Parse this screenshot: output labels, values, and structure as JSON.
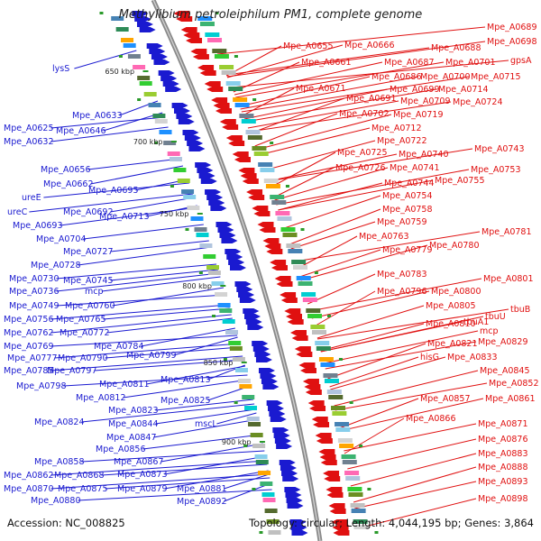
{
  "title": "Methylibium petroleiphilum PM1, complete genome",
  "accession": "Accession: NC_008825",
  "summary": "Topology: circular; Length: 4,044,195 bp; Genes: 3,864",
  "colors": {
    "left": "#1a1ad0",
    "right": "#e01010",
    "backbone": "#888888"
  },
  "kbp_marks": [
    "650 kbp",
    "700 kbp",
    "750 kbp",
    "800 kbp",
    "850 kbp",
    "900 kbp"
  ],
  "left_labels": [
    "lysS",
    "Mpe_A0633",
    "Mpe_A0625",
    "Mpe_A0646",
    "Mpe_A0632",
    "Mpe_A0656",
    "Mpe_A0662",
    "ureE",
    "Mpe_A0695",
    "ureC",
    "Mpe_A0692",
    "Mpe_A0713",
    "Mpe_A0693",
    "Mpe_A0704",
    "Mpe_A0727",
    "Mpe_A0728",
    "Mpe_A0730",
    "Mpe_A0745",
    "Mpe_A0736",
    "mcp",
    "Mpe_A0749",
    "Mpe_A0760",
    "Mpe_A0756",
    "Mpe_A0765",
    "Mpe_A0762",
    "Mpe_A0772",
    "Mpe_A0769",
    "Mpe_A0784",
    "Mpe_A0777",
    "Mpe_A0790",
    "Mpe_A0799",
    "Mpe_A0785",
    "Mpe_A0797",
    "Mpe_A0811",
    "Mpe_A0813",
    "Mpe_A0798",
    "Mpe_A0812",
    "Mpe_A0825",
    "Mpe_A0823",
    "Mpe_A0824",
    "Mpe_A0844",
    "mscL",
    "Mpe_A0847",
    "Mpe_A0856",
    "Mpe_A0858",
    "Mpe_A0867",
    "Mpe_A0862",
    "Mpe_A0868",
    "Mpe_A0873",
    "Mpe_A0870",
    "Mpe_A0875",
    "Mpe_A0879",
    "Mpe_A0881",
    "Mpe_A0880",
    "Mpe_A0892"
  ],
  "right_labels": [
    "Mpe_A0689",
    "Mpe_A0655",
    "Mpe_A0666",
    "Mpe_A0698",
    "Mpe_A0688",
    "Mpe_A0661",
    "Mpe_A0687",
    "Mpe_A0701",
    "gpsA",
    "Mpe_A0686",
    "Mpe_A0700",
    "Mpe_A0715",
    "Mpe_A0671",
    "Mpe_A0699",
    "Mpe_A0714",
    "Mpe_A0691",
    "Mpe_A0709",
    "Mpe_A0724",
    "Mpe_A0702",
    "Mpe_A0719",
    "Mpe_A0712",
    "Mpe_A0722",
    "Mpe_A0743",
    "Mpe_A0725",
    "Mpe_A0740",
    "Mpe_A0726",
    "Mpe_A0741",
    "Mpe_A0753",
    "Mpe_A0744",
    "Mpe_A0755",
    "Mpe_A0754",
    "Mpe_A0758",
    "Mpe_A0759",
    "Mpe_A0781",
    "Mpe_A0763",
    "Mpe_A0780",
    "Mpe_A0779",
    "Mpe_A0783",
    "Mpe_A0801",
    "Mpe_A0796",
    "Mpe_A0800",
    "tbuB",
    "Mpe_A0805",
    "tbuU",
    "Mpe_A0810",
    "tbuA1",
    "mcp",
    "Mpe_A0821",
    "Mpe_A0829",
    "hisG",
    "Mpe_A0833",
    "Mpe_A0845",
    "Mpe_A0852",
    "Mpe_A0857",
    "Mpe_A0861",
    "Mpe_A0866",
    "Mpe_A0871",
    "Mpe_A0876",
    "Mpe_A0883",
    "Mpe_A0888",
    "Mpe_A0893",
    "Mpe_A0898"
  ]
}
